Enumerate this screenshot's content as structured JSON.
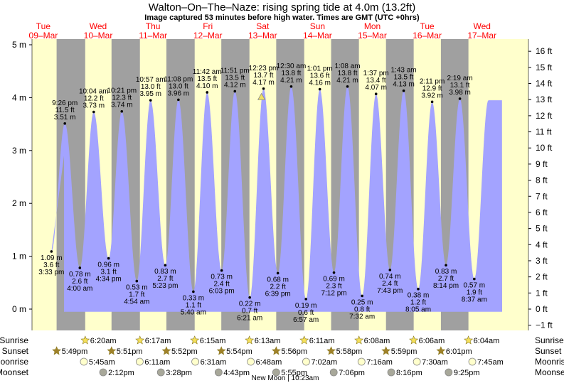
{
  "title": "Walton–On–The–Naze: rising  spring tide at 4.0m (13.2ft)",
  "subtitle": "Image captured 53 minutes before high water. Times are GMT (UTC +0hrs)",
  "colors": {
    "day": "#ffffcc",
    "night": "#a0a0a0",
    "water": "#a3a3ff",
    "date": "#ff0000",
    "sun": "#f5e05a",
    "moonrise": "#ffffcc",
    "moonset": "#a8a89a"
  },
  "chart_data": {
    "type": "area",
    "x_axis": "time (GMT), 09-Mar to 17-Mar",
    "y_left": {
      "unit": "m",
      "ticks": [
        0,
        1,
        2,
        3,
        4,
        5
      ],
      "labels": [
        "0 m",
        "1 m",
        "2 m",
        "3 m",
        "4 m",
        "5 m"
      ],
      "range": [
        -0.3,
        5.2
      ]
    },
    "y_right": {
      "unit": "ft",
      "ticks": [
        -1,
        0,
        1,
        2,
        3,
        4,
        5,
        6,
        7,
        8,
        9,
        10,
        11,
        12,
        13,
        14,
        15,
        16
      ],
      "labels": [
        "−1 ft",
        "0 ft",
        "1 ft",
        "2 ft",
        "3 ft",
        "4 ft",
        "5 ft",
        "6 ft",
        "7 ft",
        "8 ft",
        "9 ft",
        "10 ft",
        "11 ft",
        "12 ft",
        "13 ft",
        "14 ft",
        "15 ft",
        "16 ft"
      ]
    },
    "days": [
      {
        "dow": "Tue",
        "date": "09–Mar",
        "sunrise": "",
        "sunset": "5:49pm",
        "moonrise": "",
        "moonset": ""
      },
      {
        "dow": "Wed",
        "date": "10–Mar",
        "sunrise": "6:20am",
        "sunset": "5:51pm",
        "moonrise": "5:45am",
        "moonset": "2:12pm"
      },
      {
        "dow": "Thu",
        "date": "11–Mar",
        "sunrise": "6:17am",
        "sunset": "5:52pm",
        "moonrise": "6:11am",
        "moonset": "3:28pm"
      },
      {
        "dow": "Fri",
        "date": "12–Mar",
        "sunrise": "6:15am",
        "sunset": "5:54pm",
        "moonrise": "6:31am",
        "moonset": "4:43pm"
      },
      {
        "dow": "Sat",
        "date": "13–Mar",
        "sunrise": "6:13am",
        "sunset": "5:56pm",
        "moonrise": "6:48am",
        "moonset": "5:55pm"
      },
      {
        "dow": "Sun",
        "date": "14–Mar",
        "sunrise": "6:11am",
        "sunset": "5:58pm",
        "moonrise": "7:02am",
        "moonset": "7:06pm"
      },
      {
        "dow": "Mon",
        "date": "15–Mar",
        "sunrise": "6:08am",
        "sunset": "5:59pm",
        "moonrise": "7:16am",
        "moonset": "8:16pm"
      },
      {
        "dow": "Tue",
        "date": "16–Mar",
        "sunrise": "6:06am",
        "sunset": "6:01pm",
        "moonrise": "7:30am",
        "moonset": "9:25pm"
      },
      {
        "dow": "Wed",
        "date": "17–Mar",
        "sunrise": "6:04am",
        "sunset": "",
        "moonrise": "7:45am",
        "moonset": ""
      }
    ],
    "tides": [
      {
        "type": "low",
        "time": "3:33 pm",
        "m": "1.09 m",
        "ft": "3.6 ft",
        "h": 1.09,
        "day": 0,
        "hr": 15.55
      },
      {
        "type": "high",
        "time": "9:26 pm",
        "m": "3.51 m",
        "ft": "11.5 ft",
        "h": 3.51,
        "day": 0,
        "hr": 21.43
      },
      {
        "type": "low",
        "time": "4:00 am",
        "m": "0.78 m",
        "ft": "2.6 ft",
        "h": 0.78,
        "day": 1,
        "hr": 4.0
      },
      {
        "type": "high",
        "time": "10:04 am",
        "m": "3.73 m",
        "ft": "12.2 ft",
        "h": 3.73,
        "day": 1,
        "hr": 10.07
      },
      {
        "type": "low",
        "time": "4:34 pm",
        "m": "0.96 m",
        "ft": "3.1 ft",
        "h": 0.96,
        "day": 1,
        "hr": 16.57
      },
      {
        "type": "high",
        "time": "10:21 pm",
        "m": "3.74 m",
        "ft": "12.3 ft",
        "h": 3.74,
        "day": 1,
        "hr": 22.35
      },
      {
        "type": "low",
        "time": "4:54 am",
        "m": "0.53 m",
        "ft": "1.7 ft",
        "h": 0.53,
        "day": 2,
        "hr": 4.9
      },
      {
        "type": "high",
        "time": "10:57 am",
        "m": "3.95 m",
        "ft": "13.0 ft",
        "h": 3.95,
        "day": 2,
        "hr": 10.95
      },
      {
        "type": "low",
        "time": "5:23 pm",
        "m": "0.83 m",
        "ft": "2.7 ft",
        "h": 0.83,
        "day": 2,
        "hr": 17.38
      },
      {
        "type": "high",
        "time": "11:08 pm",
        "m": "3.96 m",
        "ft": "13.0 ft",
        "h": 3.96,
        "day": 2,
        "hr": 23.13
      },
      {
        "type": "low",
        "time": "5:40 am",
        "m": "0.33 m",
        "ft": "1.1 ft",
        "h": 0.33,
        "day": 3,
        "hr": 5.67
      },
      {
        "type": "high",
        "time": "11:42 am",
        "m": "4.10 m",
        "ft": "13.5 ft",
        "h": 4.1,
        "day": 3,
        "hr": 11.7
      },
      {
        "type": "low",
        "time": "6:03 pm",
        "m": "0.73 m",
        "ft": "2.4 ft",
        "h": 0.73,
        "day": 3,
        "hr": 18.05
      },
      {
        "type": "high",
        "time": "11:51 pm",
        "m": "4.12 m",
        "ft": "13.5 ft",
        "h": 4.12,
        "day": 3,
        "hr": 23.85
      },
      {
        "type": "low",
        "time": "6:21 am",
        "m": "0.22 m",
        "ft": "0.7 ft",
        "h": 0.22,
        "day": 4,
        "hr": 6.35
      },
      {
        "type": "high",
        "time": "12:23 pm",
        "m": "4.17 m",
        "ft": "13.7 ft",
        "h": 4.17,
        "day": 4,
        "hr": 12.38
      },
      {
        "type": "low",
        "time": "6:39 pm",
        "m": "0.68 m",
        "ft": "2.2 ft",
        "h": 0.68,
        "day": 4,
        "hr": 18.65
      },
      {
        "type": "high",
        "time": "12:30 am",
        "m": "4.21 m",
        "ft": "13.8 ft",
        "h": 4.21,
        "day": 5,
        "hr": 0.5
      },
      {
        "type": "low",
        "time": "6:57 am",
        "m": "0.19 m",
        "ft": "0.6 ft",
        "h": 0.19,
        "day": 5,
        "hr": 6.95
      },
      {
        "type": "high",
        "time": "1:01 pm",
        "m": "4.16 m",
        "ft": "13.6 ft",
        "h": 4.16,
        "day": 5,
        "hr": 13.02
      },
      {
        "type": "low",
        "time": "7:12 pm",
        "m": "0.69 m",
        "ft": "2.3 ft",
        "h": 0.69,
        "day": 5,
        "hr": 19.2
      },
      {
        "type": "high",
        "time": "1:08 am",
        "m": "4.21 m",
        "ft": "13.8 ft",
        "h": 4.21,
        "day": 6,
        "hr": 1.13
      },
      {
        "type": "low",
        "time": "7:32 am",
        "m": "0.25 m",
        "ft": "0.8 ft",
        "h": 0.25,
        "day": 6,
        "hr": 7.53
      },
      {
        "type": "high",
        "time": "1:37 pm",
        "m": "4.07 m",
        "ft": "13.4 ft",
        "h": 4.07,
        "day": 6,
        "hr": 13.62
      },
      {
        "type": "low",
        "time": "7:43 pm",
        "m": "0.74 m",
        "ft": "2.4 ft",
        "h": 0.74,
        "day": 6,
        "hr": 19.72
      },
      {
        "type": "high",
        "time": "1:43 am",
        "m": "4.13 m",
        "ft": "13.5 ft",
        "h": 4.13,
        "day": 7,
        "hr": 1.72
      },
      {
        "type": "low",
        "time": "8:05 am",
        "m": "0.38 m",
        "ft": "1.2 ft",
        "h": 0.38,
        "day": 7,
        "hr": 8.08
      },
      {
        "type": "high",
        "time": "2:11 pm",
        "m": "3.92 m",
        "ft": "12.9 ft",
        "h": 3.92,
        "day": 7,
        "hr": 14.18
      },
      {
        "type": "low",
        "time": "8:14 pm",
        "m": "0.83 m",
        "ft": "2.7 ft",
        "h": 0.83,
        "day": 7,
        "hr": 20.23
      },
      {
        "type": "high",
        "time": "2:19 am",
        "m": "3.98 m",
        "ft": "13.1 ft",
        "h": 3.98,
        "day": 8,
        "hr": 2.32
      },
      {
        "type": "low",
        "time": "8:37 am",
        "m": "0.57 m",
        "ft": "1.9 ft",
        "h": 0.57,
        "day": 8,
        "hr": 8.62
      }
    ],
    "current_level_m": 4.0,
    "row_labels": [
      "Sunrise",
      "Sunset",
      "Moonrise",
      "Moonset"
    ],
    "moon_phase": "New Moon | 10:23am"
  }
}
